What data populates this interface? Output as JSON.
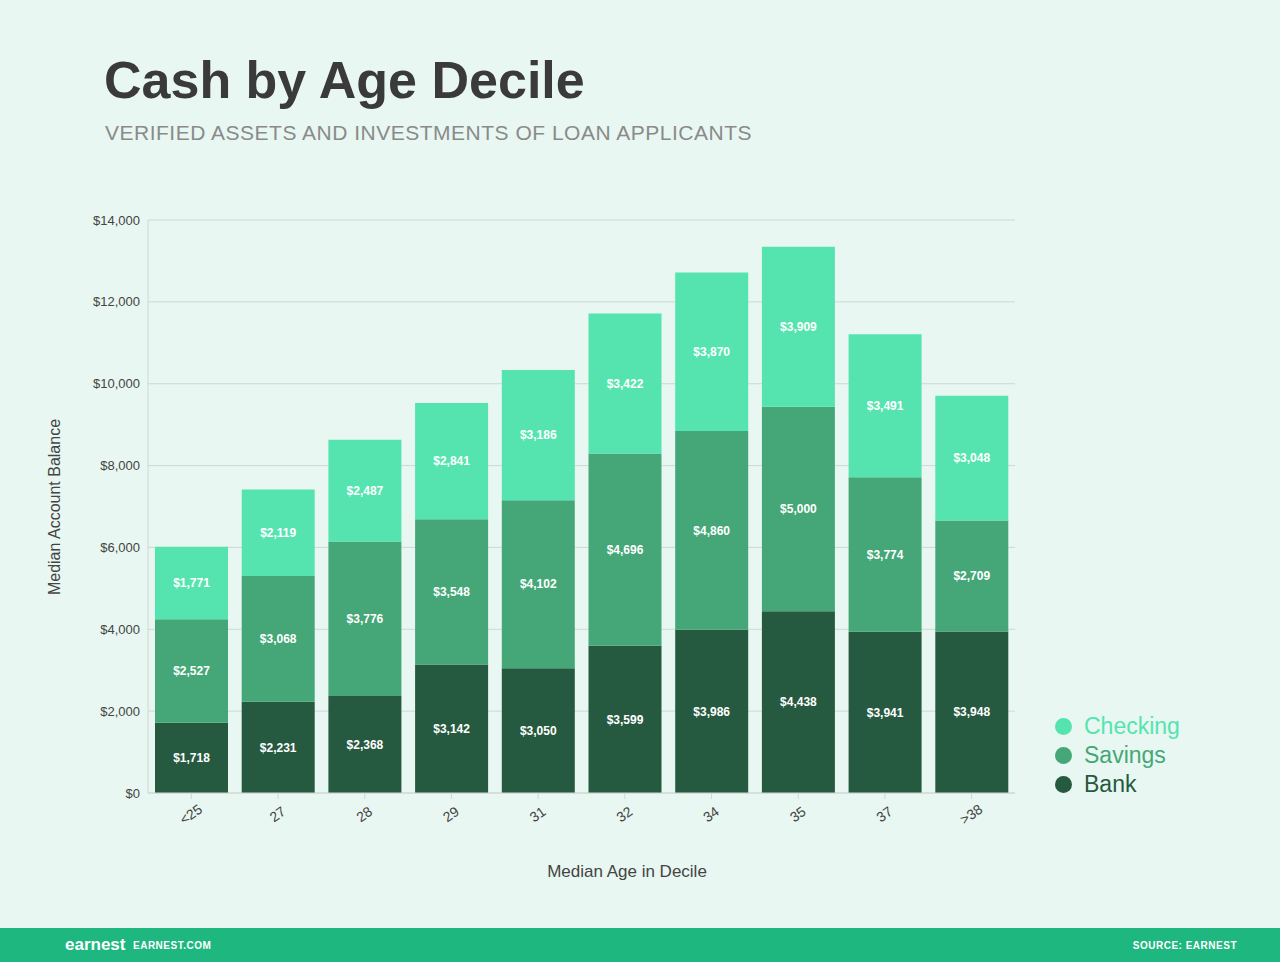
{
  "chart_data": {
    "type": "bar",
    "title": "Cash by Age Decile",
    "subtitle": "VERIFIED ASSETS AND INVESTMENTS OF LOAN APPLICANTS",
    "x_label": "Median Age in Decile",
    "y_label": "Median Account Balance",
    "annotations": [
      "earnest",
      "EARNEST.COM",
      "SOURCE: EARNEST"
    ],
    "categories": [
      "<25",
      "27",
      "28",
      "29",
      "31",
      "32",
      "34",
      "35",
      "37",
      ">38"
    ],
    "series": [
      {
        "name": "Bank",
        "color": "#265a40",
        "values": [
          1718,
          2231,
          2368,
          3142,
          3050,
          3599,
          3986,
          4438,
          3941,
          3948
        ],
        "value_labels": [
          "$1,718",
          "$2,231",
          "$2,368",
          "$3,142",
          "$3,050",
          "$3,599",
          "$3,986",
          "$4,438",
          "$3,941",
          "$3,948"
        ]
      },
      {
        "name": "Savings",
        "color": "#45a777",
        "values": [
          2527,
          3068,
          3776,
          3548,
          4102,
          4696,
          4860,
          5000,
          3774,
          2709
        ],
        "value_labels": [
          "$2,527",
          "$3,068",
          "$3,776",
          "$3,548",
          "$4,102",
          "$4,696",
          "$4,860",
          "$5,000",
          "$3,774",
          "$2,709"
        ]
      },
      {
        "name": "Checking",
        "color": "#55e4b0",
        "values": [
          1771,
          2119,
          2487,
          2841,
          3186,
          3422,
          3870,
          3909,
          3491,
          3048
        ],
        "value_labels": [
          "$1,771",
          "$2,119",
          "$2,487",
          "$2,841",
          "$3,186",
          "$3,422",
          "$3,870",
          "$3,909",
          "$3,491",
          "$3,048"
        ]
      }
    ],
    "ylim": [
      0,
      14000
    ],
    "yticks": [
      {
        "value": 0,
        "label": "$0"
      },
      {
        "value": 2000,
        "label": "$2,000"
      },
      {
        "value": 4000,
        "label": "$4,000"
      },
      {
        "value": 6000,
        "label": "$6,000"
      },
      {
        "value": 8000,
        "label": "$8,000"
      },
      {
        "value": 10000,
        "label": "$10,000"
      },
      {
        "value": 12000,
        "label": "$12,000"
      },
      {
        "value": 14000,
        "label": "$14,000"
      }
    ],
    "stacked": true,
    "data_labels": true,
    "grid": true,
    "legend": "right"
  }
}
